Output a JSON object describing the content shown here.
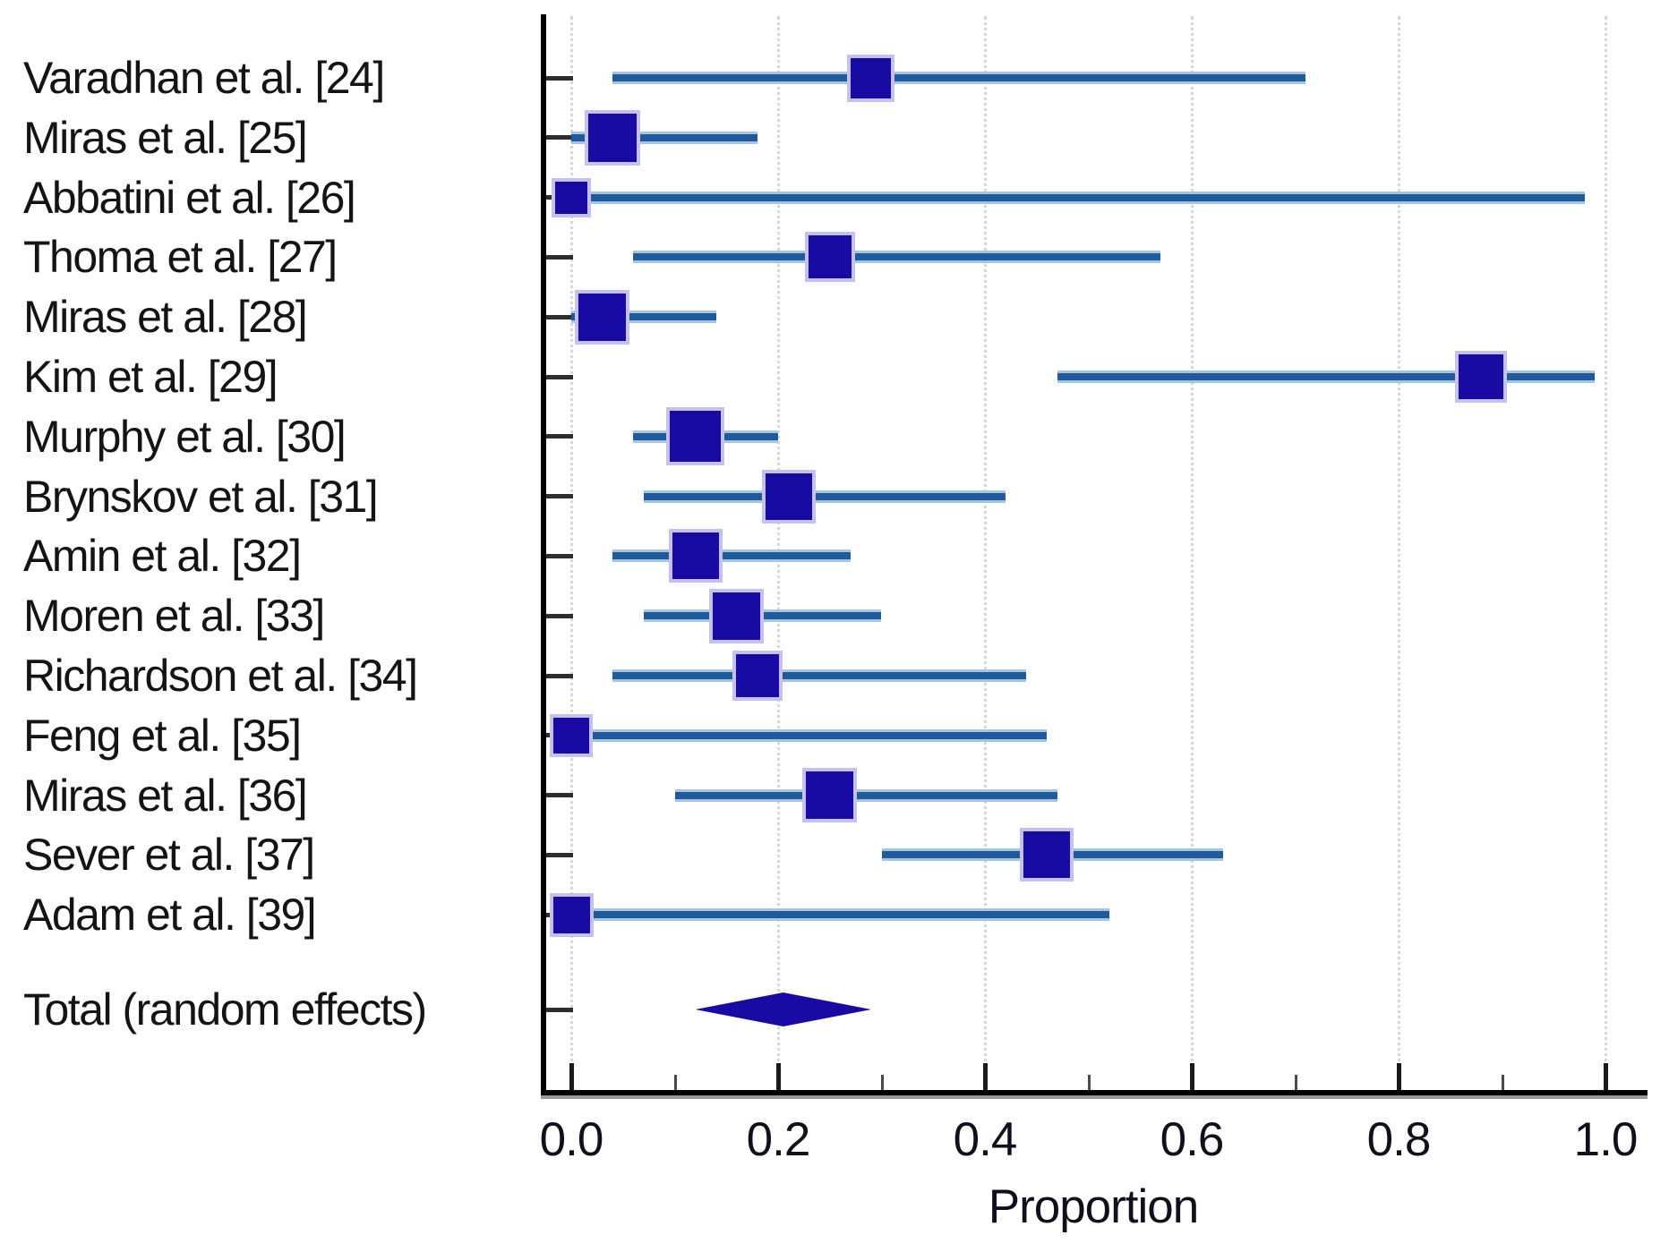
{
  "chart_data": {
    "type": "forest",
    "title": "",
    "xlabel": "Proportion",
    "xlim": [
      0.0,
      1.0
    ],
    "x_tick_labels": [
      "0.0",
      "0.2",
      "0.4",
      "0.6",
      "0.8",
      "1.0"
    ],
    "x_tick_values": [
      0.0,
      0.2,
      0.4,
      0.6,
      0.8,
      1.0
    ],
    "x_minor_tick_values": [
      0.1,
      0.3,
      0.5,
      0.7,
      0.9
    ],
    "gridline_values": [
      0.0,
      0.2,
      0.4,
      0.6,
      0.8,
      1.0
    ],
    "grid": "dotted-vertical",
    "legend_position": "none",
    "studies": [
      {
        "label": "Varadhan et al. [24]",
        "estimate": 0.29,
        "ci_low": 0.04,
        "ci_high": 0.71,
        "marker_size": 45
      },
      {
        "label": "Miras et al. [25]",
        "estimate": 0.04,
        "ci_low": 0.0,
        "ci_high": 0.18,
        "marker_size": 54
      },
      {
        "label": "Abbatini et al. [26]",
        "estimate": 0.0,
        "ci_low": 0.0,
        "ci_high": 0.98,
        "marker_size": 36
      },
      {
        "label": "Thoma et al. [27]",
        "estimate": 0.25,
        "ci_low": 0.06,
        "ci_high": 0.57,
        "marker_size": 48
      },
      {
        "label": "Miras et al. [28]",
        "estimate": 0.03,
        "ci_low": 0.0,
        "ci_high": 0.14,
        "marker_size": 53
      },
      {
        "label": "Kim et al. [29]",
        "estimate": 0.88,
        "ci_low": 0.47,
        "ci_high": 0.99,
        "marker_size": 50
      },
      {
        "label": "Murphy et al. [30]",
        "estimate": 0.12,
        "ci_low": 0.06,
        "ci_high": 0.2,
        "marker_size": 57
      },
      {
        "label": "Brynskov et al. [31]",
        "estimate": 0.21,
        "ci_low": 0.07,
        "ci_high": 0.42,
        "marker_size": 52
      },
      {
        "label": "Amin et al. [32]",
        "estimate": 0.12,
        "ci_low": 0.04,
        "ci_high": 0.27,
        "marker_size": 52
      },
      {
        "label": "Moren et al. [33]",
        "estimate": 0.16,
        "ci_low": 0.07,
        "ci_high": 0.3,
        "marker_size": 53
      },
      {
        "label": "Richardson et al. [34]",
        "estimate": 0.18,
        "ci_low": 0.04,
        "ci_high": 0.44,
        "marker_size": 48
      },
      {
        "label": "Feng et al. [35]",
        "estimate": 0.0,
        "ci_low": 0.0,
        "ci_high": 0.46,
        "marker_size": 40
      },
      {
        "label": "Miras et al. [36]",
        "estimate": 0.25,
        "ci_low": 0.1,
        "ci_high": 0.47,
        "marker_size": 53
      },
      {
        "label": "Sever et al. [37]",
        "estimate": 0.46,
        "ci_low": 0.3,
        "ci_high": 0.63,
        "marker_size": 52
      },
      {
        "label": "Adam et al. [39]",
        "estimate": 0.0,
        "ci_low": 0.0,
        "ci_high": 0.52,
        "marker_size": 41
      }
    ],
    "summary": {
      "label": "Total (random effects)",
      "estimate": 0.2,
      "ci_low": 0.12,
      "ci_high": 0.29
    },
    "colors": {
      "marker": "#170ba4",
      "marker_halo": "#c6c0ee",
      "ci_line": "#1d5b9d",
      "ci_halo": "#a9c4df",
      "axis": "#000000",
      "grid": "#d7d7d7",
      "text": "#141414"
    }
  }
}
